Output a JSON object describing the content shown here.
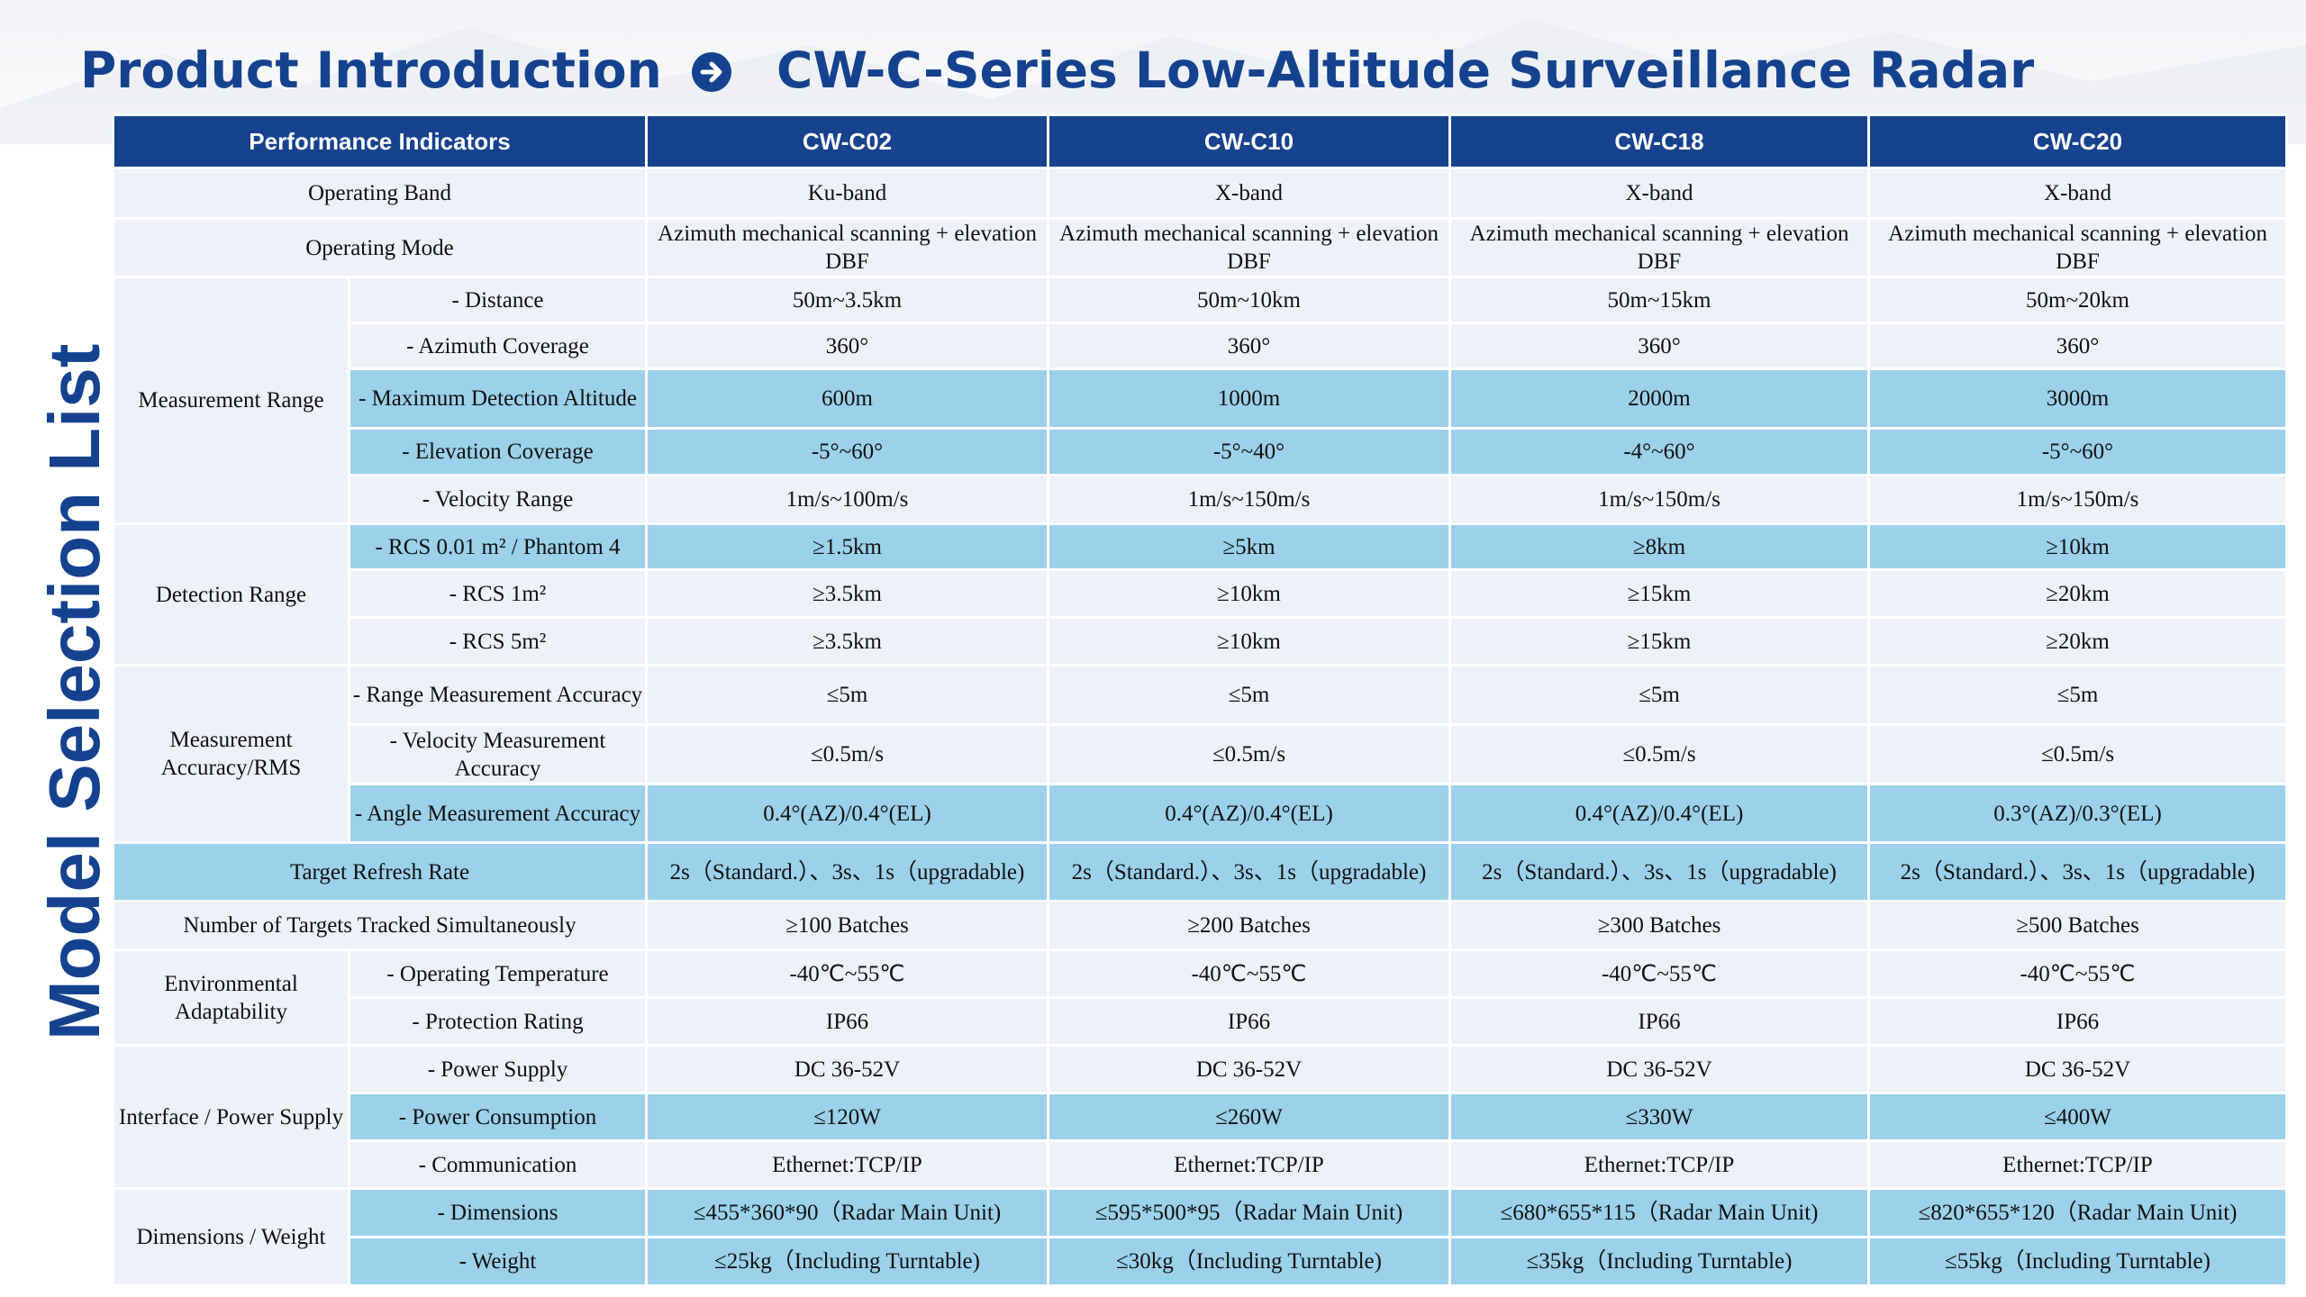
{
  "header": {
    "left_title": "Product Introduction",
    "arrow_icon": "circle-arrow-right-icon",
    "right_title": "CW-C-Series Low-Altitude Surveillance Radar",
    "side_title": "Model Selection List"
  },
  "colors": {
    "brand": "#15428f",
    "header_bg": "#16428e",
    "highlight": "#9bd1ea",
    "row_bg": "#eef1f8"
  },
  "table": {
    "columns": [
      "Performance Indicators",
      "CW-C02",
      "CW-C10",
      "CW-C18",
      "CW-C20"
    ],
    "groups": {
      "measurement_range": "Measurement Range",
      "detection_range": "Detection Range",
      "accuracy": "Measurement Accuracy/RMS",
      "environment": "Environmental Adaptability",
      "interface": "Interface / Power Supply",
      "dimensions": "Dimensions / Weight"
    },
    "rows": {
      "operating_band": {
        "label": "Operating Band",
        "values": [
          "Ku-band",
          "X-band",
          "X-band",
          "X-band"
        ]
      },
      "operating_mode": {
        "label": "Operating Mode",
        "values": [
          "Azimuth mechanical scanning + elevation DBF",
          "Azimuth mechanical scanning + elevation DBF",
          "Azimuth mechanical scanning + elevation DBF",
          "Azimuth mechanical scanning + elevation DBF"
        ]
      },
      "distance": {
        "label": "- Distance",
        "values": [
          "50m~3.5km",
          "50m~10km",
          "50m~15km",
          "50m~20km"
        ]
      },
      "azimuth": {
        "label": "- Azimuth Coverage",
        "values": [
          "360°",
          "360°",
          "360°",
          "360°"
        ]
      },
      "max_altitude": {
        "label": "- Maximum Detection Altitude",
        "values": [
          "600m",
          "1000m",
          "2000m",
          "3000m"
        ]
      },
      "elevation": {
        "label": "- Elevation Coverage",
        "values": [
          "-5°~60°",
          "-5°~40°",
          "-4°~60°",
          "-5°~60°"
        ]
      },
      "velocity": {
        "label": "- Velocity Range",
        "values": [
          "1m/s~100m/s",
          "1m/s~150m/s",
          "1m/s~150m/s",
          "1m/s~150m/s"
        ]
      },
      "rcs_001": {
        "label": "- RCS 0.01 m² / Phantom 4",
        "values": [
          "≥1.5km",
          "≥5km",
          "≥8km",
          "≥10km"
        ]
      },
      "rcs_1": {
        "label": "- RCS 1m²",
        "values": [
          "≥3.5km",
          "≥10km",
          "≥15km",
          "≥20km"
        ]
      },
      "rcs_5": {
        "label": "- RCS 5m²",
        "values": [
          "≥3.5km",
          "≥10km",
          "≥15km",
          "≥20km"
        ]
      },
      "range_acc": {
        "label": "- Range Measurement Accuracy",
        "values": [
          "≤5m",
          "≤5m",
          "≤5m",
          "≤5m"
        ]
      },
      "velocity_acc": {
        "label": "- Velocity Measurement Accuracy",
        "values": [
          "≤0.5m/s",
          "≤0.5m/s",
          "≤0.5m/s",
          "≤0.5m/s"
        ]
      },
      "angle_acc": {
        "label": "- Angle Measurement Accuracy",
        "values": [
          "0.4°(AZ)/0.4°(EL)",
          "0.4°(AZ)/0.4°(EL)",
          "0.4°(AZ)/0.4°(EL)",
          "0.3°(AZ)/0.3°(EL)"
        ]
      },
      "refresh": {
        "label": "Target Refresh Rate",
        "values": [
          "2s（Standard.）、3s、1s（upgradable)",
          "2s（Standard.）、3s、1s（upgradable)",
          "2s（Standard.）、3s、1s（upgradable)",
          "2s（Standard.）、3s、1s（upgradable)"
        ]
      },
      "targets": {
        "label": "Number of Targets Tracked Simultaneously",
        "values": [
          "≥100 Batches",
          "≥200 Batches",
          "≥300 Batches",
          "≥500 Batches"
        ]
      },
      "temperature": {
        "label": "- Operating Temperature",
        "values": [
          "-40℃~55℃",
          "-40℃~55℃",
          "-40℃~55℃",
          "-40℃~55℃"
        ]
      },
      "protection": {
        "label": "- Protection Rating",
        "values": [
          "IP66",
          "IP66",
          "IP66",
          "IP66"
        ]
      },
      "power_supply": {
        "label": "- Power Supply",
        "values": [
          "DC 36-52V",
          "DC 36-52V",
          "DC 36-52V",
          "DC 36-52V"
        ]
      },
      "power_consumption": {
        "label": "- Power Consumption",
        "values": [
          "≤120W",
          "≤260W",
          "≤330W",
          "≤400W"
        ]
      },
      "communication": {
        "label": "- Communication",
        "values": [
          "Ethernet:TCP/IP",
          "Ethernet:TCP/IP",
          "Ethernet:TCP/IP",
          "Ethernet:TCP/IP"
        ]
      },
      "dimensions": {
        "label": "- Dimensions",
        "values": [
          "≤455*360*90（Radar Main Unit)",
          "≤595*500*95（Radar Main Unit)",
          "≤680*655*115（Radar Main Unit)",
          "≤820*655*120（Radar Main Unit)"
        ]
      },
      "weight": {
        "label": "- Weight",
        "values": [
          "≤25kg（Including Turntable)",
          "≤30kg（Including Turntable)",
          "≤35kg（Including Turntable)",
          "≤55kg（Including Turntable)"
        ]
      }
    }
  }
}
